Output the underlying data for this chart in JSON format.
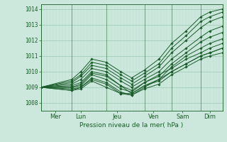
{
  "background_color": "#cce8dc",
  "grid_color_major": "#9dc8b4",
  "grid_color_minor": "#b8dace",
  "line_color": "#1a5c2a",
  "xlabel": "Pression niveau de la mer( hPa )",
  "ylim": [
    1007.5,
    1014.3
  ],
  "yticks": [
    1008,
    1009,
    1010,
    1011,
    1012,
    1013,
    1014
  ],
  "day_labels": [
    "Mer",
    "Lun",
    "Jeu",
    "Ven",
    "Sam",
    "Dim"
  ],
  "day_positions": [
    0.08,
    0.22,
    0.42,
    0.62,
    0.78,
    0.93
  ],
  "day_sep_positions": [
    0.0,
    0.17,
    0.36,
    0.57,
    0.72,
    0.88,
    1.0
  ],
  "series": [
    {
      "x": [
        0.0,
        0.17,
        0.22,
        0.28,
        0.36,
        0.44,
        0.5,
        0.57,
        0.65,
        0.72,
        0.8,
        0.88,
        0.93,
        1.0
      ],
      "y": [
        1009.0,
        1009.1,
        1009.3,
        1010.0,
        1009.8,
        1009.1,
        1008.6,
        1009.1,
        1009.5,
        1010.3,
        1011.0,
        1011.5,
        1011.8,
        1012.1
      ]
    },
    {
      "x": [
        0.0,
        0.17,
        0.22,
        0.28,
        0.36,
        0.44,
        0.5,
        0.57,
        0.65,
        0.72,
        0.8,
        0.88,
        0.93,
        1.0
      ],
      "y": [
        1009.0,
        1009.0,
        1009.1,
        1009.8,
        1009.5,
        1008.9,
        1008.7,
        1009.3,
        1009.8,
        1010.2,
        1010.8,
        1011.2,
        1011.5,
        1011.8
      ]
    },
    {
      "x": [
        0.0,
        0.17,
        0.22,
        0.28,
        0.36,
        0.44,
        0.5,
        0.57,
        0.65,
        0.72,
        0.8,
        0.88,
        0.93,
        1.0
      ],
      "y": [
        1009.0,
        1008.9,
        1009.0,
        1009.6,
        1009.3,
        1008.7,
        1008.5,
        1009.0,
        1009.5,
        1010.0,
        1010.5,
        1011.0,
        1011.2,
        1011.5
      ]
    },
    {
      "x": [
        0.0,
        0.17,
        0.22,
        0.28,
        0.36,
        0.44,
        0.5,
        0.57,
        0.65,
        0.72,
        0.8,
        0.88,
        0.93,
        1.0
      ],
      "y": [
        1009.0,
        1008.8,
        1008.9,
        1009.4,
        1009.0,
        1008.6,
        1008.5,
        1008.9,
        1009.2,
        1009.8,
        1010.3,
        1010.8,
        1011.0,
        1011.2
      ]
    },
    {
      "x": [
        0.0,
        0.17,
        0.22,
        0.28,
        0.36,
        0.44,
        0.5,
        0.57,
        0.65,
        0.72,
        0.8,
        0.88,
        0.93,
        1.0
      ],
      "y": [
        1009.0,
        1009.2,
        1009.5,
        1010.2,
        1010.0,
        1009.4,
        1009.0,
        1009.5,
        1010.0,
        1010.8,
        1011.5,
        1012.2,
        1012.6,
        1012.9
      ]
    },
    {
      "x": [
        0.0,
        0.17,
        0.22,
        0.28,
        0.36,
        0.44,
        0.5,
        0.57,
        0.65,
        0.72,
        0.8,
        0.88,
        0.93,
        1.0
      ],
      "y": [
        1009.0,
        1009.3,
        1009.7,
        1010.4,
        1010.2,
        1009.6,
        1009.2,
        1009.7,
        1010.3,
        1011.2,
        1012.0,
        1012.8,
        1013.2,
        1013.5
      ]
    },
    {
      "x": [
        0.0,
        0.17,
        0.22,
        0.28,
        0.36,
        0.44,
        0.5,
        0.57,
        0.65,
        0.72,
        0.8,
        0.88,
        0.93,
        1.0
      ],
      "y": [
        1009.0,
        1009.4,
        1009.8,
        1010.6,
        1010.4,
        1009.8,
        1009.4,
        1009.9,
        1010.5,
        1011.5,
        1012.3,
        1013.2,
        1013.5,
        1013.8
      ]
    },
    {
      "x": [
        0.0,
        0.17,
        0.22,
        0.28,
        0.36,
        0.44,
        0.5,
        0.57,
        0.65,
        0.72,
        0.8,
        0.88,
        0.93,
        1.0
      ],
      "y": [
        1009.0,
        1009.5,
        1010.0,
        1010.8,
        1010.6,
        1010.0,
        1009.6,
        1010.1,
        1010.8,
        1011.8,
        1012.6,
        1013.5,
        1013.8,
        1014.0
      ]
    },
    {
      "x": [
        0.0,
        0.17,
        0.22,
        0.28,
        0.36,
        0.44,
        0.5,
        0.57,
        0.65,
        0.72,
        0.8,
        0.88,
        0.93,
        1.0
      ],
      "y": [
        1009.0,
        1008.8,
        1009.0,
        1009.5,
        1009.2,
        1008.6,
        1008.6,
        1009.1,
        1009.4,
        1010.0,
        1010.5,
        1011.0,
        1011.2,
        1011.5
      ]
    },
    {
      "x": [
        0.0,
        0.17,
        0.22,
        0.28,
        0.36,
        0.44,
        0.5,
        0.57,
        0.65,
        0.72,
        0.8,
        0.88,
        0.93,
        1.0
      ],
      "y": [
        1009.0,
        1009.0,
        1009.2,
        1009.9,
        1009.7,
        1009.1,
        1008.8,
        1009.3,
        1009.7,
        1010.5,
        1011.2,
        1011.9,
        1012.2,
        1012.5
      ]
    }
  ]
}
